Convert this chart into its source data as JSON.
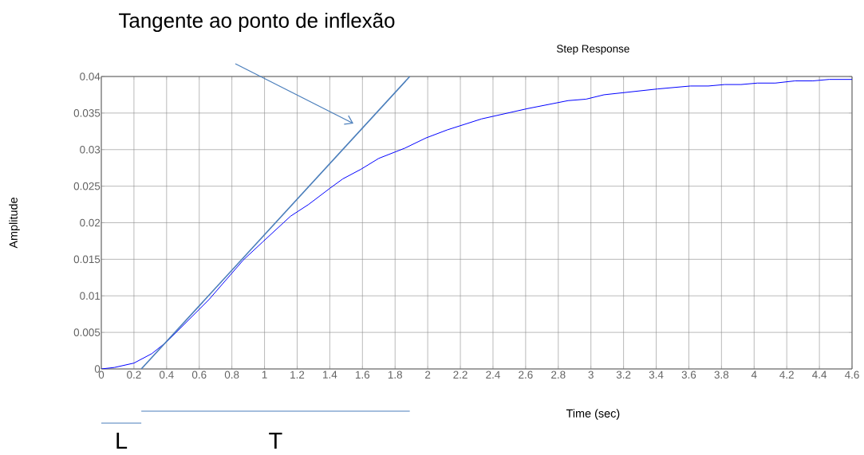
{
  "chart_data": {
    "type": "line",
    "title": "Step Response",
    "xlabel": "Time (sec)",
    "ylabel": "Amplitude",
    "series": [
      {
        "color": "#0000ff",
        "x": [
          0,
          0.08,
          0.2,
          0.31,
          0.4,
          0.66,
          0.87,
          0.99,
          1.16,
          1.27,
          1.4,
          1.48,
          1.59,
          1.7,
          1.86,
          1.99,
          2.12,
          2.33,
          2.61,
          2.86,
          2.97,
          3.08,
          3.41,
          3.61,
          3.72,
          3.82,
          3.92,
          4.02,
          4.13,
          4.25,
          4.36,
          4.46,
          4.6
        ],
        "values": [
          0,
          0.0002,
          0.0008,
          0.0021,
          0.0037,
          0.0095,
          0.0149,
          0.0174,
          0.0209,
          0.0225,
          0.0247,
          0.026,
          0.0273,
          0.0288,
          0.0302,
          0.0316,
          0.0327,
          0.0342,
          0.0356,
          0.0367,
          0.0369,
          0.0375,
          0.0383,
          0.0387,
          0.0387,
          0.0389,
          0.0389,
          0.0391,
          0.0391,
          0.0394,
          0.0394,
          0.0396,
          0.0396
        ]
      },
      {
        "type": "line",
        "color": "#4a7ebb",
        "x": [
          0.245,
          1.89
        ],
        "values": [
          0,
          0.04
        ]
      }
    ],
    "xlim": [
      0,
      4.6
    ],
    "ylim": [
      0,
      0.04
    ],
    "xticks": [
      0,
      0.2,
      0.4,
      0.6,
      0.8,
      1,
      1.2,
      1.4,
      1.6,
      1.8,
      2,
      2.2,
      2.4,
      2.6,
      2.8,
      3,
      3.2,
      3.4,
      3.6,
      3.8,
      4,
      4.2,
      4.4,
      4.6
    ],
    "yticks": [
      0,
      0.005,
      0.01,
      0.015,
      0.02,
      0.025,
      0.03,
      0.035,
      0.04
    ],
    "grid": true,
    "annotations": [
      "Tangente ao ponto de inflexão",
      "L",
      "T"
    ]
  }
}
